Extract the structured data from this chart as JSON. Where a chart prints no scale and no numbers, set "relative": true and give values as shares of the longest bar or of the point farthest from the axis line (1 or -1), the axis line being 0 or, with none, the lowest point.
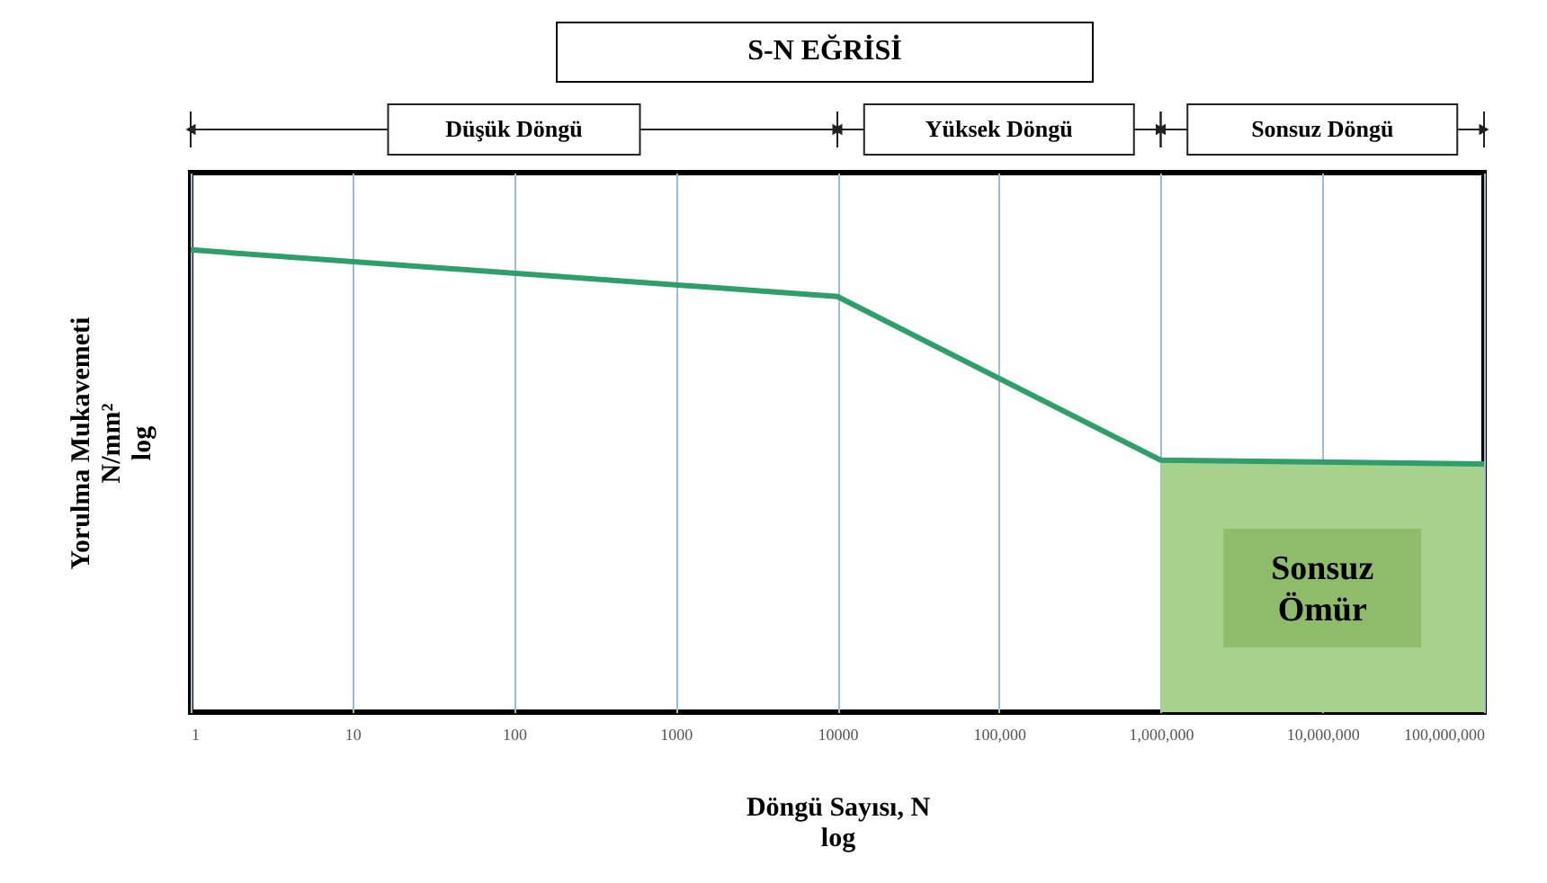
{
  "chart_data": {
    "type": "line",
    "title": "S-N EĞRİSİ",
    "xlabel": "Döngü Sayısı, N\nlog",
    "ylabel": "Yorulma Mukavemeti\nN/mm²\nlog",
    "log": "x",
    "relative": true,
    "xlim": [
      1,
      100000000
    ],
    "xticks": [
      1,
      10,
      100,
      1000,
      10000,
      {
        "value": 100000,
        "label": "100,000"
      },
      {
        "value": 1000000,
        "label": "1,000,000"
      },
      {
        "value": 10000000,
        "label": "10,000,000"
      },
      {
        "value": 100000000,
        "label": "100,000,000"
      }
    ],
    "x": [
      1,
      10000,
      1000000,
      100000000
    ],
    "series": [
      {
        "type": "area",
        "color": "#a9d18e",
        "x": [
          1000000,
          100000000
        ],
        "values": [
          0.545,
          0.537
        ]
      },
      {
        "color": "#2e9e6a",
        "values": [
          1,
          0.899,
          0.545,
          0.537
        ]
      }
    ],
    "annotations": [
      "Düşük Döngü",
      "Yüksek Döngü",
      "Sonsuz Döngü",
      "Sonsuz Ömür"
    ],
    "grid": "x",
    "marker": "none"
  }
}
